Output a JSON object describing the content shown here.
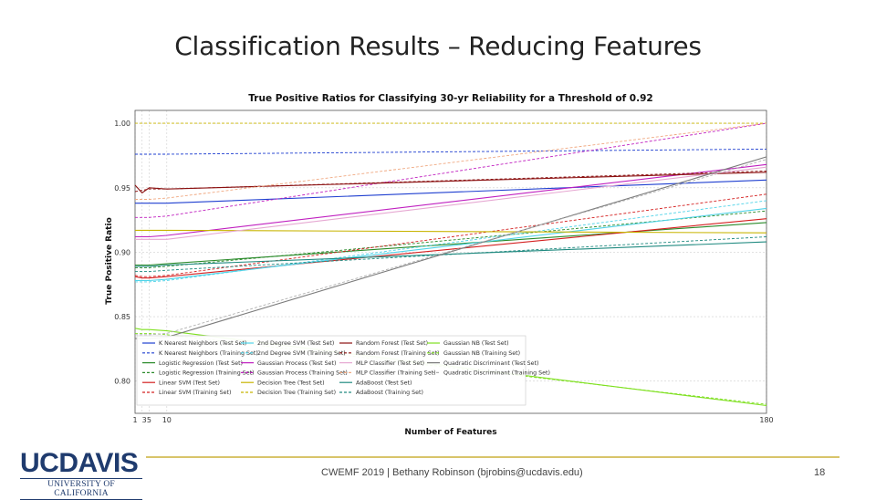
{
  "slide": {
    "title": "Classification Results – Reducing Features",
    "footer": "CWEMF 2019 | Bethany Robinson (bjrobins@ucdavis.edu)",
    "page_number": "18",
    "logo_main": "UCDAVIS",
    "logo_sub": "UNIVERSITY OF CALIFORNIA",
    "accent_color": "#d8c46a",
    "logo_color": "#1f3b6e"
  },
  "chart_data": {
    "type": "line",
    "title": "True Positive Ratios for Classifying 30-yr Reliability for a Threshold of 0.92",
    "xlabel": "Number of Features",
    "ylabel": "True Positive Ratio",
    "xlim": [
      1,
      180
    ],
    "ylim": [
      0.775,
      1.01
    ],
    "xticks": [
      1,
      3,
      5,
      10,
      180
    ],
    "xtick_labels": [
      "1",
      "3",
      "5",
      "10",
      "180"
    ],
    "yticks": [
      0.8,
      0.85,
      0.9,
      0.95,
      1.0
    ],
    "ytick_labels": [
      "0.80",
      "0.85",
      "0.90",
      "0.95",
      "1.00"
    ],
    "grid": true,
    "legend_position": "lower-center",
    "series": [
      {
        "name": "K Nearest Neighbors (Test Set)",
        "color": "#1f3fd0",
        "dashed": false,
        "x": [
          1,
          3,
          5,
          10,
          180
        ],
        "y": [
          0.938,
          0.938,
          0.938,
          0.938,
          0.956
        ]
      },
      {
        "name": "K Nearest Neighbors (Training Set)",
        "color": "#1f3fd0",
        "dashed": true,
        "x": [
          1,
          3,
          5,
          10,
          180
        ],
        "y": [
          0.976,
          0.976,
          0.976,
          0.976,
          0.98
        ]
      },
      {
        "name": "Logistic Regression (Test Set)",
        "color": "#2a8a2a",
        "dashed": false,
        "x": [
          1,
          3,
          5,
          10,
          180
        ],
        "y": [
          0.89,
          0.89,
          0.89,
          0.891,
          0.923
        ]
      },
      {
        "name": "Logistic Regression (Training Set)",
        "color": "#2a8a2a",
        "dashed": true,
        "x": [
          1,
          3,
          5,
          10,
          180
        ],
        "y": [
          0.888,
          0.888,
          0.888,
          0.889,
          0.932
        ]
      },
      {
        "name": "Linear SVM (Test Set)",
        "color": "#d42020",
        "dashed": false,
        "x": [
          1,
          3,
          5,
          10,
          180
        ],
        "y": [
          0.881,
          0.88,
          0.88,
          0.881,
          0.926
        ]
      },
      {
        "name": "Linear SVM (Training Set)",
        "color": "#d42020",
        "dashed": true,
        "x": [
          1,
          3,
          5,
          10,
          180
        ],
        "y": [
          0.882,
          0.881,
          0.881,
          0.882,
          0.945
        ]
      },
      {
        "name": "2nd Degree SVM (Test Set)",
        "color": "#4fd3e8",
        "dashed": false,
        "x": [
          1,
          3,
          5,
          10,
          180
        ],
        "y": [
          0.878,
          0.878,
          0.878,
          0.879,
          0.934
        ]
      },
      {
        "name": "2nd Degree SVM (Training Set)",
        "color": "#4fd3e8",
        "dashed": true,
        "x": [
          1,
          3,
          5,
          10,
          180
        ],
        "y": [
          0.877,
          0.877,
          0.877,
          0.878,
          0.94
        ]
      },
      {
        "name": "Gaussian Process (Test Set)",
        "color": "#c020c0",
        "dashed": false,
        "x": [
          1,
          3,
          5,
          10,
          180
        ],
        "y": [
          0.912,
          0.912,
          0.912,
          0.913,
          0.968
        ]
      },
      {
        "name": "Gaussian Process (Training Set)",
        "color": "#c020c0",
        "dashed": true,
        "x": [
          1,
          3,
          5,
          10,
          180
        ],
        "y": [
          0.927,
          0.927,
          0.927,
          0.928,
          1.0
        ]
      },
      {
        "name": "Decision Tree (Test Set)",
        "color": "#c8b400",
        "dashed": false,
        "x": [
          1,
          3,
          5,
          10,
          180
        ],
        "y": [
          0.917,
          0.917,
          0.917,
          0.917,
          0.915
        ]
      },
      {
        "name": "Decision Tree (Training Set)",
        "color": "#c8b400",
        "dashed": true,
        "x": [
          1,
          3,
          5,
          10,
          180
        ],
        "y": [
          1.0,
          1.0,
          1.0,
          1.0,
          1.0
        ]
      },
      {
        "name": "Random Forest (Test Set)",
        "color": "#8b1010",
        "dashed": false,
        "x": [
          1,
          3,
          5,
          10,
          180
        ],
        "y": [
          0.952,
          0.946,
          0.95,
          0.949,
          0.962
        ]
      },
      {
        "name": "Random Forest (Training Set)",
        "color": "#8b1010",
        "dashed": true,
        "x": [
          1,
          3,
          5,
          10,
          180
        ],
        "y": [
          0.947,
          0.948,
          0.949,
          0.949,
          0.963
        ]
      },
      {
        "name": "MLP Classifier (Test Set)",
        "color": "#e6a8d2",
        "dashed": false,
        "x": [
          1,
          3,
          5,
          10,
          180
        ],
        "y": [
          0.91,
          0.91,
          0.91,
          0.91,
          0.966
        ]
      },
      {
        "name": "MLP Classifier (Training Set)",
        "color": "#f0a880",
        "dashed": true,
        "x": [
          1,
          3,
          5,
          10,
          180
        ],
        "y": [
          0.941,
          0.941,
          0.941,
          0.942,
          1.0
        ]
      },
      {
        "name": "AdaBoost (Test Set)",
        "color": "#208a80",
        "dashed": false,
        "x": [
          1,
          3,
          5,
          10,
          180
        ],
        "y": [
          0.889,
          0.889,
          0.889,
          0.89,
          0.908
        ]
      },
      {
        "name": "AdaBoost (Training Set)",
        "color": "#208a80",
        "dashed": true,
        "x": [
          1,
          3,
          5,
          10,
          180
        ],
        "y": [
          0.885,
          0.885,
          0.885,
          0.886,
          0.912
        ]
      },
      {
        "name": "Gaussian NB (Test Set)",
        "color": "#7fe020",
        "dashed": false,
        "x": [
          1,
          3,
          5,
          10,
          180
        ],
        "y": [
          0.841,
          0.84,
          0.84,
          0.839,
          0.781
        ]
      },
      {
        "name": "Gaussian NB (Training Set)",
        "color": "#7fe020",
        "dashed": true,
        "x": [
          1,
          3,
          5,
          10,
          180
        ],
        "y": [
          0.837,
          0.837,
          0.837,
          0.836,
          0.782
        ]
      },
      {
        "name": "Quadratic Discriminant (Test Set)",
        "color": "#7a7a7a",
        "dashed": false,
        "x": [
          1,
          3,
          5,
          10,
          180
        ],
        "y": [
          0.833,
          0.833,
          0.833,
          0.834,
          0.974
        ]
      },
      {
        "name": "Quadratic Discriminant (Training Set)",
        "color": "#b0b0b0",
        "dashed": true,
        "x": [
          1,
          3,
          5,
          10,
          180
        ],
        "y": [
          0.836,
          0.836,
          0.836,
          0.837,
          0.972
        ]
      }
    ]
  }
}
